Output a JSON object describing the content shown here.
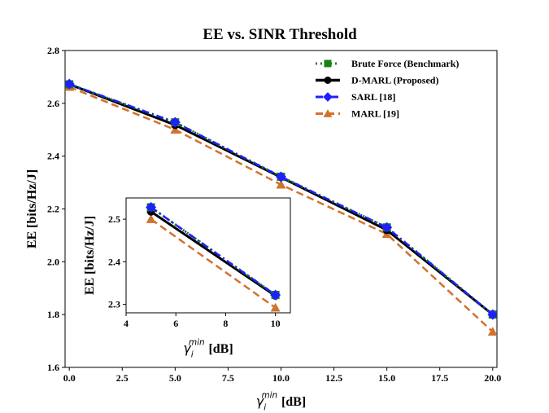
{
  "chart_data": [
    {
      "type": "line",
      "title": "EE vs. SINR Threshold",
      "xlabel_symbol": "γ",
      "xlabel_sub": "i",
      "xlabel_sup": "min",
      "xlabel_unit": "[dB]",
      "ylabel": "EE [bits/Hz/J]",
      "xlim": [
        -0.2,
        20.2
      ],
      "ylim": [
        1.6,
        2.8
      ],
      "xticks": [
        "0.0",
        "2.5",
        "5.0",
        "7.5",
        "10.0",
        "12.5",
        "15.0",
        "17.5",
        "20.0"
      ],
      "yticks": [
        "1.6",
        "1.8",
        "2.0",
        "2.2",
        "2.4",
        "2.6",
        "2.8"
      ],
      "legend_position": "top-right",
      "x": [
        0,
        5,
        10,
        15,
        20
      ],
      "series": [
        {
          "name": "Brute Force (Benchmark)",
          "values": [
            2.672,
            2.528,
            2.322,
            2.13,
            1.8
          ],
          "color": "#1a7f1a",
          "marker": "square",
          "dash": "dotted"
        },
        {
          "name": "D-MARL (Proposed)",
          "values": [
            2.672,
            2.518,
            2.32,
            2.12,
            1.8
          ],
          "color": "#000000",
          "marker": "circle",
          "dash": "solid"
        },
        {
          "name": "SARL [18]",
          "values": [
            2.673,
            2.528,
            2.322,
            2.13,
            1.8
          ],
          "color": "#1f1fff",
          "marker": "diamond",
          "dash": "dashdot"
        },
        {
          "name": "MARL [19]",
          "values": [
            2.662,
            2.5,
            2.292,
            2.105,
            1.735
          ],
          "color": "#d2722e",
          "marker": "triangle",
          "dash": "dashed"
        }
      ]
    },
    {
      "type": "line",
      "title": "",
      "xlabel_symbol": "γ",
      "xlabel_sub": "i",
      "xlabel_sup": "min",
      "xlabel_unit": "[dB]",
      "ylabel": "EE [bits/Hz/J]",
      "xlim": [
        4,
        10.6
      ],
      "ylim": [
        2.28,
        2.55
      ],
      "xticks": [
        "4",
        "6",
        "8",
        "10"
      ],
      "yticks": [
        "2.3",
        "2.4",
        "2.5"
      ],
      "x": [
        5,
        10
      ],
      "series": [
        {
          "name": "Brute Force (Benchmark)",
          "values": [
            2.528,
            2.322
          ],
          "color": "#1a7f1a",
          "marker": "square",
          "dash": "dotted"
        },
        {
          "name": "D-MARL (Proposed)",
          "values": [
            2.518,
            2.32
          ],
          "color": "#000000",
          "marker": "circle",
          "dash": "solid"
        },
        {
          "name": "SARL [18]",
          "values": [
            2.528,
            2.322
          ],
          "color": "#1f1fff",
          "marker": "diamond",
          "dash": "dashdot"
        },
        {
          "name": "MARL [19]",
          "values": [
            2.5,
            2.292
          ],
          "color": "#d2722e",
          "marker": "triangle",
          "dash": "dashed"
        }
      ]
    }
  ]
}
